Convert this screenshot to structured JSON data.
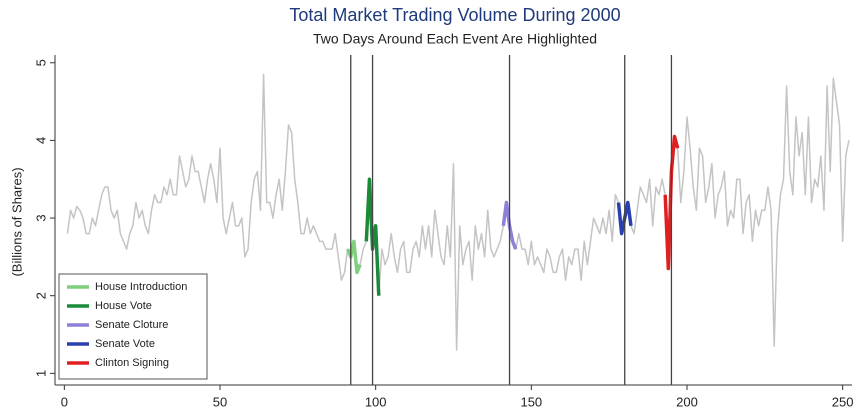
{
  "chart_data": {
    "type": "line",
    "title": "Total Market Trading Volume During 2000",
    "subtitle": "Two Days Around Each Event Are Highlighted",
    "y_label": "(Billions of Shares)",
    "xlim": [
      -3,
      253
    ],
    "ylim": [
      0.85,
      5.1
    ],
    "xticks": [
      0,
      50,
      100,
      150,
      200,
      250
    ],
    "yticks": [
      1,
      2,
      3,
      4,
      5
    ],
    "legend": "bottom-left",
    "event_lines": [
      92,
      99,
      143,
      180,
      195
    ],
    "x": [
      1,
      2,
      3,
      4,
      5,
      6,
      7,
      8,
      9,
      10,
      11,
      12,
      13,
      14,
      15,
      16,
      17,
      18,
      19,
      20,
      21,
      22,
      23,
      24,
      25,
      26,
      27,
      28,
      29,
      30,
      31,
      32,
      33,
      34,
      35,
      36,
      37,
      38,
      39,
      40,
      41,
      42,
      43,
      44,
      45,
      46,
      47,
      48,
      49,
      50,
      51,
      52,
      53,
      54,
      55,
      56,
      57,
      58,
      59,
      60,
      61,
      62,
      63,
      64,
      65,
      66,
      67,
      68,
      69,
      70,
      71,
      72,
      73,
      74,
      75,
      76,
      77,
      78,
      79,
      80,
      81,
      82,
      83,
      84,
      85,
      86,
      87,
      88,
      89,
      90,
      91,
      92,
      93,
      94,
      95,
      96,
      97,
      98,
      99,
      100,
      101,
      102,
      103,
      104,
      105,
      106,
      107,
      108,
      109,
      110,
      111,
      112,
      113,
      114,
      115,
      116,
      117,
      118,
      119,
      120,
      121,
      122,
      123,
      124,
      125,
      126,
      127,
      128,
      129,
      130,
      131,
      132,
      133,
      134,
      135,
      136,
      137,
      138,
      139,
      140,
      141,
      142,
      143,
      144,
      145,
      146,
      147,
      148,
      149,
      150,
      151,
      152,
      153,
      154,
      155,
      156,
      157,
      158,
      159,
      160,
      161,
      162,
      163,
      164,
      165,
      166,
      167,
      168,
      169,
      170,
      171,
      172,
      173,
      174,
      175,
      176,
      177,
      178,
      179,
      180,
      181,
      182,
      183,
      184,
      185,
      186,
      187,
      188,
      189,
      190,
      191,
      192,
      193,
      194,
      195,
      196,
      197,
      198,
      199,
      200,
      201,
      202,
      203,
      204,
      205,
      206,
      207,
      208,
      209,
      210,
      211,
      212,
      213,
      214,
      215,
      216,
      217,
      218,
      219,
      220,
      221,
      222,
      223,
      224,
      225,
      226,
      227,
      228,
      229,
      230,
      231,
      232,
      233,
      234,
      235,
      236,
      237,
      238,
      239,
      240,
      241,
      242,
      243,
      244,
      245,
      246,
      247,
      248,
      249,
      250,
      251,
      252
    ],
    "series": [
      {
        "color": "#c4c4c4",
        "values": [
          2.8,
          3.1,
          3.0,
          3.15,
          3.1,
          3.0,
          2.8,
          2.8,
          3.0,
          2.9,
          3.1,
          3.3,
          3.4,
          3.4,
          3.1,
          3.0,
          3.1,
          2.8,
          2.7,
          2.6,
          2.8,
          2.9,
          3.2,
          3.0,
          3.1,
          2.9,
          2.8,
          3.1,
          3.3,
          3.2,
          3.2,
          3.4,
          3.3,
          3.5,
          3.3,
          3.3,
          3.8,
          3.6,
          3.4,
          3.5,
          3.8,
          3.6,
          3.6,
          3.4,
          3.2,
          3.5,
          3.7,
          3.5,
          3.2,
          3.9,
          3.0,
          2.8,
          3.0,
          3.2,
          2.9,
          2.9,
          3.0,
          2.5,
          2.6,
          3.2,
          3.5,
          3.6,
          3.1,
          4.85,
          3.2,
          3.2,
          3.0,
          3.3,
          3.5,
          3.1,
          3.6,
          4.2,
          4.1,
          3.5,
          3.2,
          2.8,
          2.8,
          3.0,
          2.8,
          2.9,
          2.8,
          2.7,
          2.7,
          2.6,
          2.6,
          2.6,
          2.8,
          2.5,
          2.2,
          2.3,
          2.6,
          2.5,
          2.7,
          2.3,
          2.4,
          2.6,
          2.7,
          3.5,
          2.6,
          2.9,
          2.0,
          2.6,
          2.4,
          2.5,
          2.8,
          2.5,
          2.3,
          2.6,
          2.7,
          2.3,
          2.3,
          2.6,
          2.7,
          2.5,
          2.9,
          2.6,
          2.9,
          2.5,
          3.1,
          2.8,
          2.5,
          2.4,
          2.9,
          2.5,
          3.7,
          1.3,
          2.9,
          2.4,
          2.6,
          2.7,
          2.2,
          2.9,
          2.6,
          2.8,
          2.5,
          3.1,
          2.6,
          2.5,
          2.6,
          2.7,
          2.9,
          3.2,
          2.9,
          2.7,
          2.6,
          2.8,
          2.6,
          2.6,
          2.4,
          2.7,
          2.4,
          2.5,
          2.4,
          2.3,
          2.6,
          2.5,
          2.3,
          2.3,
          2.5,
          2.6,
          2.2,
          2.5,
          2.4,
          2.6,
          2.6,
          2.2,
          2.7,
          2.4,
          2.7,
          3.0,
          2.9,
          2.8,
          3.0,
          2.8,
          3.1,
          2.7,
          3.3,
          3.2,
          2.8,
          3.0,
          3.2,
          2.9,
          2.8,
          3.1,
          3.4,
          3.3,
          3.2,
          3.5,
          2.9,
          3.4,
          3.3,
          3.5,
          3.3,
          2.35,
          3.6,
          4.05,
          3.9,
          3.2,
          3.6,
          4.3,
          3.9,
          3.4,
          3.1,
          3.9,
          3.8,
          3.2,
          3.4,
          3.7,
          3.0,
          3.3,
          3.4,
          3.6,
          2.9,
          3.1,
          3.0,
          3.5,
          3.5,
          2.8,
          3.2,
          3.3,
          2.7,
          3.1,
          2.9,
          3.1,
          3.1,
          3.4,
          3.1,
          1.35,
          2.8,
          3.3,
          3.5,
          4.7,
          3.6,
          3.3,
          4.3,
          3.8,
          4.1,
          3.3,
          4.3,
          3.2,
          3.5,
          3.4,
          3.8,
          3.1,
          4.7,
          3.6,
          4.8,
          4.5,
          4.2,
          2.7,
          3.8,
          4.0
        ]
      },
      {
        "name": "House Introduction",
        "color": "#7fcf7f",
        "x": [
          91,
          92,
          93,
          94,
          95
        ],
        "values": [
          2.6,
          2.5,
          2.7,
          2.3,
          2.4
        ]
      },
      {
        "name": "House Vote",
        "color": "#1a8a3a",
        "x": [
          97,
          98,
          99,
          100,
          101
        ],
        "values": [
          2.7,
          3.5,
          2.6,
          2.9,
          2.0
        ]
      },
      {
        "name": "Senate Cloture",
        "color": "#8f7fd6",
        "x": [
          141,
          142,
          143,
          144,
          145
        ],
        "values": [
          2.9,
          3.2,
          2.9,
          2.7,
          2.6
        ]
      },
      {
        "name": "Senate Vote",
        "color": "#2a3fb0",
        "x": [
          178,
          179,
          180,
          181,
          182
        ],
        "values": [
          3.2,
          2.8,
          3.0,
          3.2,
          2.9
        ]
      },
      {
        "name": "Clinton Signing",
        "color": "#e02020",
        "x": [
          193,
          194,
          195,
          196,
          197
        ],
        "values": [
          3.3,
          2.35,
          3.6,
          4.05,
          3.9
        ]
      }
    ]
  }
}
